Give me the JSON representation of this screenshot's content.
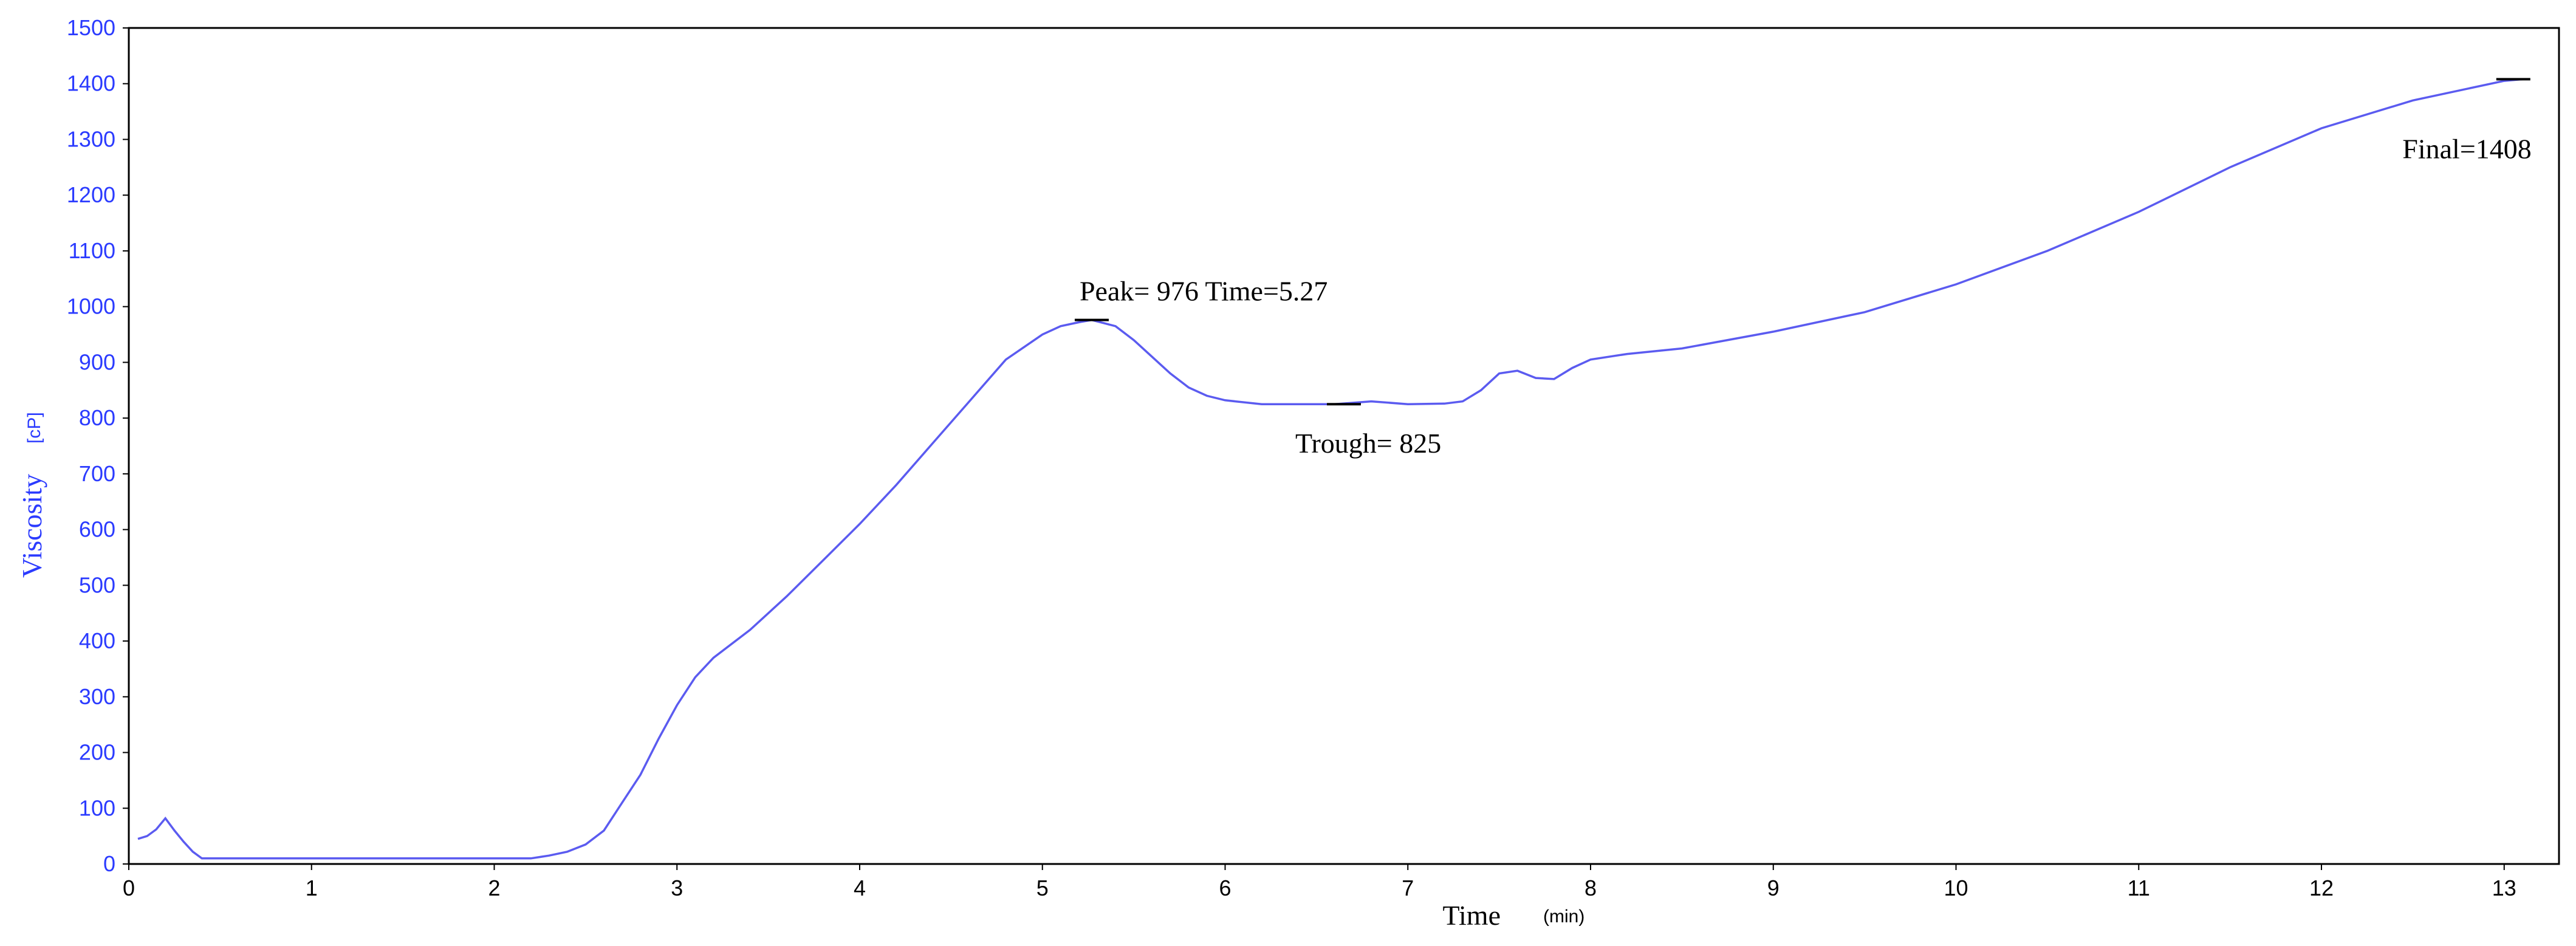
{
  "colors": {
    "line": "#5b5bf0",
    "y_axis_text": "#2b3bff",
    "x_axis_text": "#000000",
    "frame": "#000000",
    "background": "#ffffff"
  },
  "chart_data": {
    "type": "line",
    "title": "",
    "xlabel": "Time",
    "xlabel_unit": "(min)",
    "ylabel": "Viscosity",
    "ylabel_unit": "[cP]",
    "xlim": [
      0,
      13.3
    ],
    "ylim": [
      0,
      1500
    ],
    "grid": false,
    "x_ticks": [
      "0",
      "1",
      "2",
      "3",
      "4",
      "5",
      "6",
      "7",
      "8",
      "9",
      "10",
      "11",
      "12",
      "13"
    ],
    "y_ticks": [
      "0",
      "100",
      "200",
      "300",
      "400",
      "500",
      "600",
      "700",
      "800",
      "900",
      "1000",
      "1100",
      "1200",
      "1300",
      "1400",
      "1500"
    ],
    "series": [
      {
        "x": [
          0.05,
          0.1,
          0.15,
          0.2,
          0.25,
          0.3,
          0.35,
          0.4,
          0.6,
          1.0,
          1.5,
          2.0,
          2.2,
          2.3,
          2.4,
          2.5,
          2.6,
          2.7,
          2.8,
          2.9,
          3.0,
          3.1,
          3.2,
          3.4,
          3.6,
          3.8,
          4.0,
          4.2,
          4.4,
          4.6,
          4.8,
          5.0,
          5.1,
          5.2,
          5.27,
          5.4,
          5.5,
          5.6,
          5.7,
          5.8,
          5.9,
          6.0,
          6.2,
          6.4,
          6.6,
          6.8,
          7.0,
          7.2,
          7.3,
          7.4,
          7.5,
          7.6,
          7.7,
          7.8,
          7.9,
          8.0,
          8.2,
          8.5,
          9.0,
          9.5,
          10.0,
          10.5,
          11.0,
          11.5,
          12.0,
          12.5,
          13.0,
          13.1
        ],
        "y": [
          45,
          50,
          62,
          82,
          60,
          40,
          22,
          10,
          10,
          10,
          10,
          10,
          10,
          15,
          22,
          35,
          60,
          110,
          160,
          225,
          285,
          335,
          370,
          420,
          480,
          545,
          610,
          680,
          755,
          830,
          905,
          950,
          965,
          972,
          976,
          965,
          940,
          910,
          880,
          855,
          840,
          832,
          825,
          825,
          825,
          830,
          825,
          826,
          830,
          850,
          880,
          885,
          872,
          870,
          890,
          905,
          915,
          925,
          955,
          990,
          1040,
          1100,
          1170,
          1250,
          1320,
          1370,
          1405,
          1408
        ]
      }
    ],
    "annotations": [
      {
        "text": "Peak= 976 Time=5.27",
        "x": 5.27,
        "y": 976
      },
      {
        "text": "Trough= 825",
        "x": 6.65,
        "y": 825
      },
      {
        "text": "Final=1408",
        "x": 13.05,
        "y": 1408
      }
    ]
  }
}
